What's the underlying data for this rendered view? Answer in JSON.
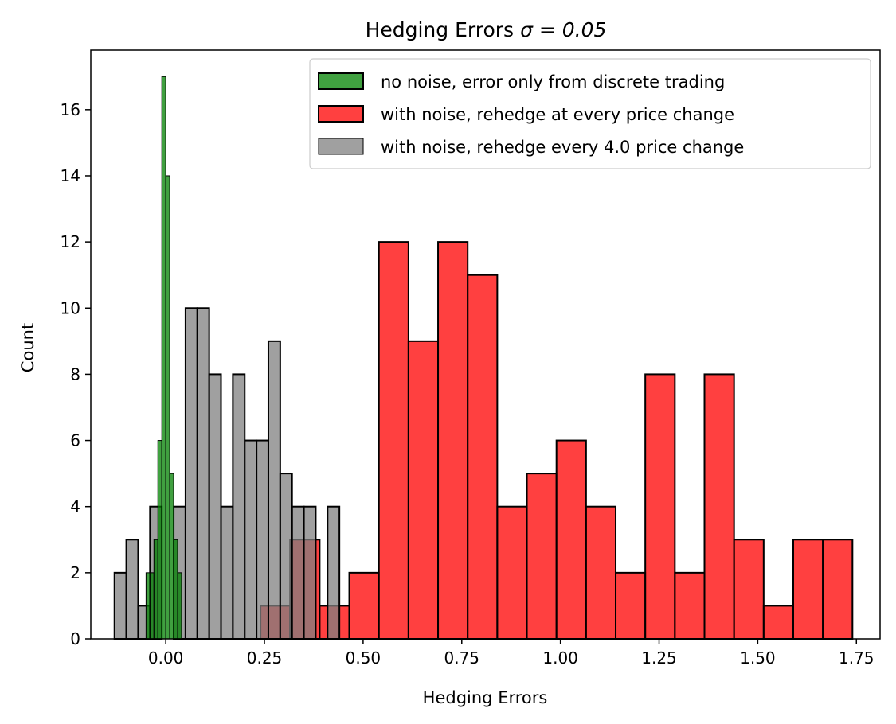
{
  "chart_data": {
    "type": "bar",
    "title": "Hedging Errors",
    "title_math": "σ = 0.05",
    "xlabel": "Hedging Errors",
    "ylabel": "Count",
    "xlim": [
      -0.19,
      1.81
    ],
    "ylim": [
      0,
      17.8
    ],
    "xticks": [
      "0.00",
      "0.25",
      "0.50",
      "0.75",
      "1.00",
      "1.25",
      "1.50",
      "1.75"
    ],
    "xtick_values": [
      0,
      0.25,
      0.5,
      0.75,
      1.0,
      1.25,
      1.5,
      1.75
    ],
    "yticks": [
      "0",
      "2",
      "4",
      "6",
      "8",
      "10",
      "12",
      "14",
      "16"
    ],
    "ytick_values": [
      0,
      2,
      4,
      6,
      8,
      10,
      12,
      14,
      16
    ],
    "grid": false,
    "legend_position": "top-right",
    "series": [
      {
        "name": "with noise, rehedge at every price change",
        "color": "#ff0000",
        "alpha": 0.75,
        "bin_edges": [
          0.24,
          0.315,
          0.39,
          0.465,
          0.54,
          0.615,
          0.69,
          0.765,
          0.84,
          0.915,
          0.99,
          1.065,
          1.14,
          1.215,
          1.29,
          1.365,
          1.44,
          1.515,
          1.59,
          1.665,
          1.74
        ],
        "counts": [
          1,
          3,
          1,
          2,
          12,
          9,
          12,
          11,
          4,
          5,
          6,
          4,
          2,
          8,
          2,
          8,
          3,
          1,
          3,
          3
        ]
      },
      {
        "name": "with noise, rehedge every 4.0 price change",
        "color": "#808080",
        "alpha": 0.75,
        "bin_edges": [
          -0.13,
          -0.1,
          -0.07,
          -0.04,
          -0.01,
          0.02,
          0.05,
          0.08,
          0.11,
          0.14,
          0.17,
          0.2,
          0.23,
          0.26,
          0.29,
          0.32,
          0.35,
          0.38,
          0.41,
          0.44
        ],
        "counts": [
          2,
          3,
          1,
          4,
          0,
          4,
          10,
          10,
          8,
          4,
          8,
          6,
          6,
          9,
          5,
          4,
          4,
          0,
          4
        ]
      },
      {
        "name": "no noise, error only from discrete trading",
        "color": "#008000",
        "alpha": 0.75,
        "bin_edges": [
          -0.05,
          -0.04,
          -0.03,
          -0.02,
          -0.01,
          0.0,
          0.01,
          0.02,
          0.03,
          0.04
        ],
        "counts": [
          2,
          2,
          3,
          6,
          17,
          14,
          5,
          3,
          2
        ]
      }
    ]
  }
}
